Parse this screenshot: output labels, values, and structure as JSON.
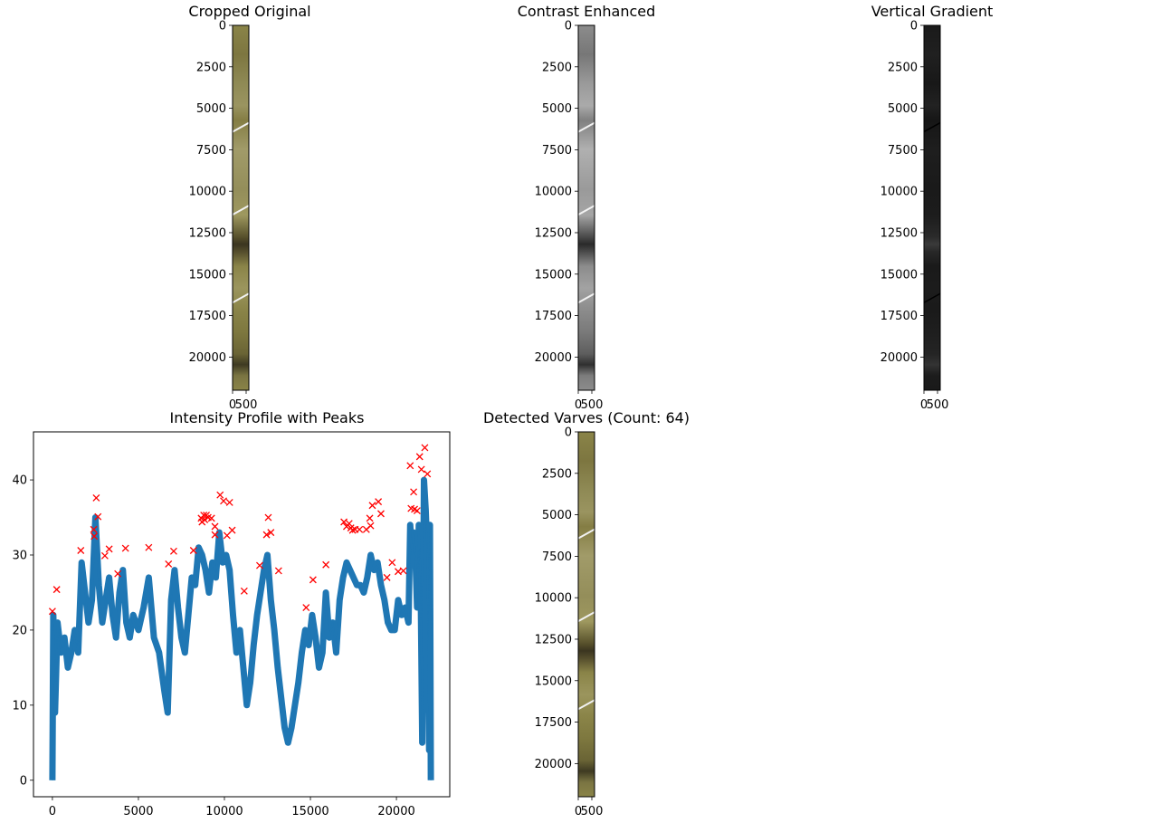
{
  "chart_data": [
    {
      "type": "image",
      "title": "Cropped Original",
      "colormap": "olive",
      "ylim": [
        0,
        22000
      ],
      "yticks": [
        0,
        2500,
        5000,
        7500,
        10000,
        12500,
        15000,
        17500,
        20000
      ],
      "ytick_labels": [
        "0",
        "2500",
        "5000",
        "7500",
        "10000",
        "12500",
        "15000",
        "17500",
        "20000"
      ],
      "xticks": [
        0,
        500
      ],
      "xtick_labels": [
        "0",
        "500"
      ]
    },
    {
      "type": "image",
      "title": "Contrast Enhanced",
      "colormap": "gray",
      "ylim": [
        0,
        22000
      ],
      "yticks": [
        0,
        2500,
        5000,
        7500,
        10000,
        12500,
        15000,
        17500,
        20000
      ],
      "ytick_labels": [
        "0",
        "2500",
        "5000",
        "7500",
        "10000",
        "12500",
        "15000",
        "17500",
        "20000"
      ],
      "xticks": [
        0,
        500
      ],
      "xtick_labels": [
        "0",
        "500"
      ]
    },
    {
      "type": "image",
      "title": "Vertical Gradient",
      "colormap": "dark",
      "ylim": [
        0,
        22000
      ],
      "yticks": [
        0,
        2500,
        5000,
        7500,
        10000,
        12500,
        15000,
        17500,
        20000
      ],
      "ytick_labels": [
        "0",
        "2500",
        "5000",
        "7500",
        "10000",
        "12500",
        "15000",
        "17500",
        "20000"
      ],
      "xticks": [
        0,
        500
      ],
      "xtick_labels": [
        "0",
        "500"
      ]
    },
    {
      "type": "line",
      "title": "Intensity Profile with Peaks",
      "xlim": [
        -1100,
        23100
      ],
      "ylim": [
        -2.2,
        46.4
      ],
      "xticks": [
        0,
        5000,
        10000,
        15000,
        20000
      ],
      "xtick_labels": [
        "0",
        "5000",
        "10000",
        "15000",
        "20000"
      ],
      "yticks": [
        0,
        10,
        20,
        30,
        40
      ],
      "ytick_labels": [
        "0",
        "10",
        "20",
        "30",
        "40"
      ],
      "line_color": "#1f77b4",
      "marker_color": "#ff0000",
      "profile": [
        [
          0,
          0
        ],
        [
          50,
          22
        ],
        [
          150,
          9
        ],
        [
          300,
          21
        ],
        [
          500,
          17
        ],
        [
          700,
          19
        ],
        [
          900,
          15
        ],
        [
          1100,
          17
        ],
        [
          1300,
          20
        ],
        [
          1500,
          17
        ],
        [
          1700,
          29
        ],
        [
          1900,
          25
        ],
        [
          2100,
          21
        ],
        [
          2300,
          24
        ],
        [
          2500,
          35
        ],
        [
          2700,
          26
        ],
        [
          2900,
          21
        ],
        [
          3100,
          24
        ],
        [
          3300,
          27
        ],
        [
          3500,
          22
        ],
        [
          3700,
          19
        ],
        [
          3900,
          25
        ],
        [
          4100,
          28
        ],
        [
          4300,
          21
        ],
        [
          4500,
          19
        ],
        [
          4700,
          22
        ],
        [
          5000,
          20
        ],
        [
          5300,
          23
        ],
        [
          5600,
          27
        ],
        [
          5900,
          19
        ],
        [
          6200,
          17
        ],
        [
          6500,
          12
        ],
        [
          6700,
          9
        ],
        [
          6900,
          24
        ],
        [
          7100,
          28
        ],
        [
          7300,
          23
        ],
        [
          7500,
          19
        ],
        [
          7700,
          17
        ],
        [
          7900,
          22
        ],
        [
          8100,
          27
        ],
        [
          8300,
          26
        ],
        [
          8500,
          31
        ],
        [
          8700,
          30
        ],
        [
          8900,
          28
        ],
        [
          9100,
          25
        ],
        [
          9300,
          29
        ],
        [
          9500,
          27
        ],
        [
          9700,
          33
        ],
        [
          9900,
          29
        ],
        [
          10100,
          30
        ],
        [
          10300,
          28
        ],
        [
          10500,
          22
        ],
        [
          10700,
          17
        ],
        [
          10900,
          20
        ],
        [
          11100,
          15
        ],
        [
          11300,
          10
        ],
        [
          11500,
          13
        ],
        [
          11700,
          18
        ],
        [
          11900,
          22
        ],
        [
          12100,
          25
        ],
        [
          12300,
          28
        ],
        [
          12500,
          30
        ],
        [
          12700,
          24
        ],
        [
          12900,
          20
        ],
        [
          13100,
          15
        ],
        [
          13300,
          11
        ],
        [
          13500,
          7
        ],
        [
          13700,
          5
        ],
        [
          13900,
          7
        ],
        [
          14100,
          10
        ],
        [
          14300,
          13
        ],
        [
          14500,
          17
        ],
        [
          14700,
          20
        ],
        [
          14900,
          18
        ],
        [
          15100,
          22
        ],
        [
          15300,
          19
        ],
        [
          15500,
          15
        ],
        [
          15700,
          17
        ],
        [
          15900,
          25
        ],
        [
          16100,
          19
        ],
        [
          16300,
          21
        ],
        [
          16500,
          17
        ],
        [
          16700,
          24
        ],
        [
          16900,
          27
        ],
        [
          17100,
          29
        ],
        [
          17300,
          28
        ],
        [
          17500,
          27
        ],
        [
          17700,
          26
        ],
        [
          17900,
          26
        ],
        [
          18100,
          25
        ],
        [
          18300,
          27
        ],
        [
          18500,
          30
        ],
        [
          18700,
          28
        ],
        [
          18900,
          29
        ],
        [
          19100,
          26
        ],
        [
          19300,
          24
        ],
        [
          19500,
          21
        ],
        [
          19700,
          20
        ],
        [
          19900,
          20
        ],
        [
          20100,
          24
        ],
        [
          20300,
          22
        ],
        [
          20500,
          23
        ],
        [
          20700,
          21
        ],
        [
          20800,
          34
        ],
        [
          20900,
          30
        ],
        [
          21000,
          33
        ],
        [
          21100,
          30
        ],
        [
          21200,
          23
        ],
        [
          21300,
          34
        ],
        [
          21400,
          28
        ],
        [
          21500,
          5
        ],
        [
          21600,
          40
        ],
        [
          21700,
          36
        ],
        [
          21800,
          30
        ],
        [
          21900,
          4
        ],
        [
          21950,
          34
        ],
        [
          22000,
          0
        ]
      ],
      "peaks": [
        [
          0,
          22.5
        ],
        [
          250,
          25.4
        ],
        [
          1650,
          30.6
        ],
        [
          2400,
          33.4
        ],
        [
          2430,
          32.5
        ],
        [
          2550,
          37.6
        ],
        [
          2650,
          35.1
        ],
        [
          3050,
          29.9
        ],
        [
          3300,
          30.8
        ],
        [
          3800,
          27.5
        ],
        [
          4250,
          30.9
        ],
        [
          5600,
          31.0
        ],
        [
          6750,
          28.8
        ],
        [
          7050,
          30.5
        ],
        [
          8200,
          30.6
        ],
        [
          8650,
          34.9
        ],
        [
          8700,
          34.4
        ],
        [
          8800,
          35.3
        ],
        [
          8850,
          34.7
        ],
        [
          8950,
          35.3
        ],
        [
          9050,
          35.0
        ],
        [
          9250,
          34.9
        ],
        [
          9450,
          33.8
        ],
        [
          9450,
          32.7
        ],
        [
          9750,
          38.0
        ],
        [
          9950,
          37.2
        ],
        [
          10150,
          32.6
        ],
        [
          10300,
          37.0
        ],
        [
          10450,
          33.3
        ],
        [
          11150,
          25.2
        ],
        [
          12050,
          28.6
        ],
        [
          12450,
          32.7
        ],
        [
          12550,
          35.0
        ],
        [
          12700,
          33.0
        ],
        [
          13150,
          27.9
        ],
        [
          14750,
          23.0
        ],
        [
          15150,
          26.7
        ],
        [
          15900,
          28.7
        ],
        [
          16950,
          34.4
        ],
        [
          17100,
          33.8
        ],
        [
          17250,
          34.2
        ],
        [
          17350,
          33.6
        ],
        [
          17450,
          33.3
        ],
        [
          17600,
          33.4
        ],
        [
          17850,
          33.4
        ],
        [
          18250,
          33.4
        ],
        [
          18450,
          34.9
        ],
        [
          18500,
          33.9
        ],
        [
          18600,
          36.6
        ],
        [
          18950,
          37.1
        ],
        [
          19100,
          35.5
        ],
        [
          19450,
          27.0
        ],
        [
          19750,
          29.0
        ],
        [
          20100,
          27.8
        ],
        [
          20400,
          27.9
        ],
        [
          20800,
          41.9
        ],
        [
          20850,
          36.2
        ],
        [
          21000,
          38.4
        ],
        [
          21050,
          36.1
        ],
        [
          21200,
          35.9
        ],
        [
          21350,
          43.1
        ],
        [
          21450,
          41.4
        ],
        [
          21650,
          44.3
        ],
        [
          21800,
          40.8
        ]
      ]
    },
    {
      "type": "image",
      "title": "Detected Varves (Count: 64)",
      "colormap": "olive",
      "ylim": [
        0,
        22000
      ],
      "yticks": [
        0,
        2500,
        5000,
        7500,
        10000,
        12500,
        15000,
        17500,
        20000
      ],
      "ytick_labels": [
        "0",
        "2500",
        "5000",
        "7500",
        "10000",
        "12500",
        "15000",
        "17500",
        "20000"
      ],
      "xticks": [
        0,
        500
      ],
      "xtick_labels": [
        "0",
        "500"
      ]
    }
  ]
}
